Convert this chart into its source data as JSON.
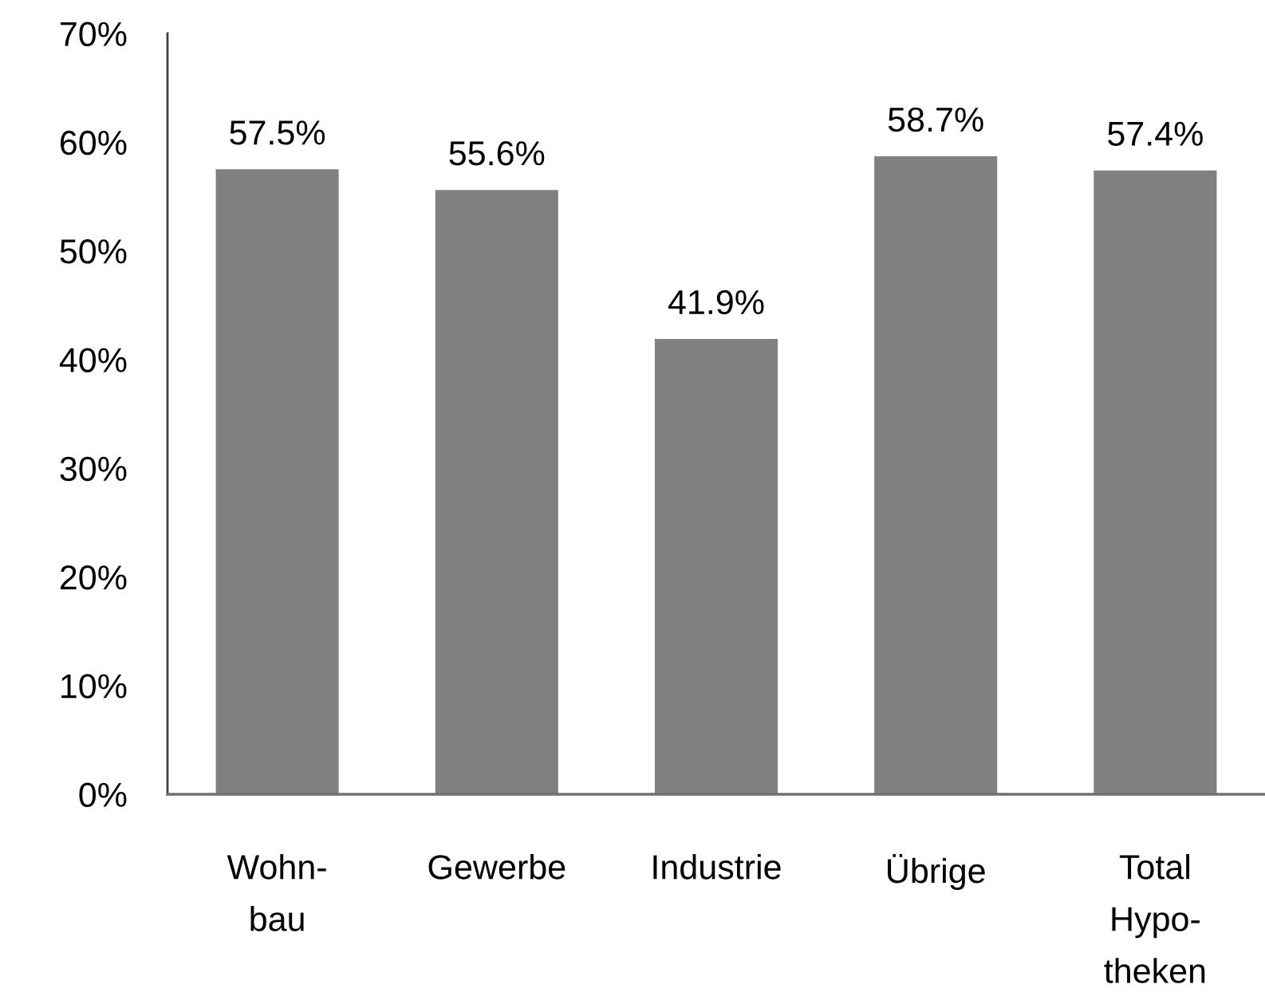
{
  "chart_data": {
    "type": "bar",
    "categories": [
      "Wohn-\nbau",
      "Gewerbe",
      "Industrie",
      "Übrige",
      "Total\nHypo-\ntheken"
    ],
    "values": [
      57.5,
      55.6,
      41.9,
      58.7,
      57.4
    ],
    "color": "#808080",
    "value_labels": [
      "57.5%",
      "55.6%",
      "41.9%",
      "58.7%",
      "57.4%"
    ],
    "ylim": [
      0,
      70
    ],
    "yticks": [
      {
        "value": 0,
        "label": "0%"
      },
      {
        "value": 10,
        "label": "10%"
      },
      {
        "value": 20,
        "label": "20%"
      },
      {
        "value": 30,
        "label": "30%"
      },
      {
        "value": 40,
        "label": "40%"
      },
      {
        "value": 50,
        "label": "50%"
      },
      {
        "value": 60,
        "label": "60%"
      },
      {
        "value": 70,
        "label": "70%"
      }
    ],
    "grid": false
  }
}
